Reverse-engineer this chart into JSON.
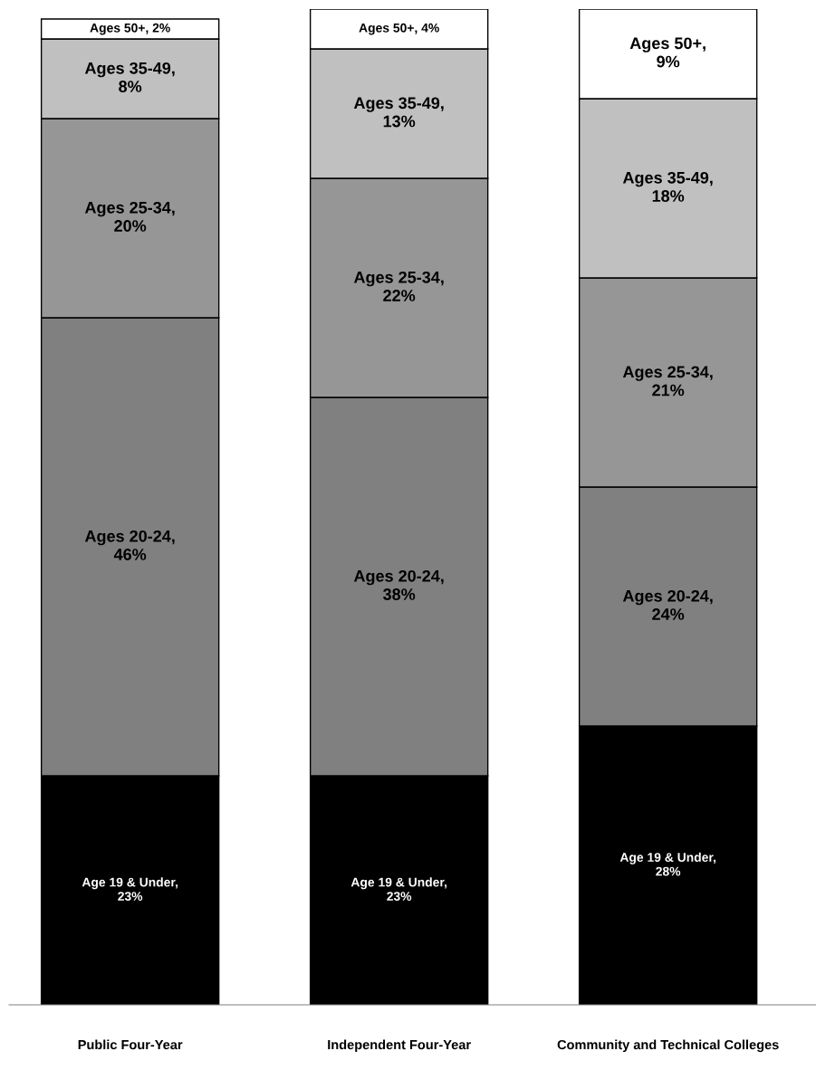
{
  "chart_data": {
    "type": "bar",
    "stacked": true,
    "data_labels": true,
    "categories": [
      "Public Four-Year",
      "Independent Four-Year",
      "Community and Technical Colleges"
    ],
    "series": [
      {
        "color": "#000000",
        "values": [
          23,
          23,
          28
        ],
        "value_labels": [
          "Age 19 & Under, 23%",
          "Age 19 & Under, 23%",
          "Age 19 & Under, 28%"
        ]
      },
      {
        "color": "#808080",
        "values": [
          46,
          38,
          24
        ],
        "value_labels": [
          "Ages 20-24, 46%",
          "Ages 20-24, 38%",
          "Ages 20-24, 24%"
        ]
      },
      {
        "color": "#969696",
        "values": [
          20,
          22,
          21
        ],
        "value_labels": [
          "Ages 25-34, 20%",
          "Ages 25-34, 22%",
          "Ages 25-34, 21%"
        ]
      },
      {
        "color": "#c0c0c0",
        "values": [
          8,
          13,
          18
        ],
        "value_labels": [
          "Ages 35-49, 8%",
          "Ages 35-49, 13%",
          "Ages 35-49, 18%"
        ]
      },
      {
        "color": "#ffffff",
        "values": [
          2,
          4,
          9
        ],
        "value_labels": [
          "Ages 50+, 2%",
          "Ages 50+, 4%",
          "Ages 50+, 9%"
        ]
      }
    ]
  }
}
